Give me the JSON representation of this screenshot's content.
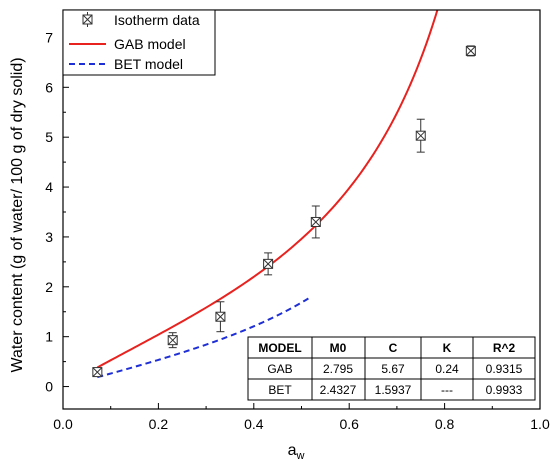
{
  "chart_data": {
    "type": "scatter",
    "xlabel_main": "a",
    "xlabel_sub": "w",
    "ylabel": "Water content (g of water/ 100 g of dry solid)",
    "xlim": [
      0.0,
      1.0
    ],
    "ylim": [
      -0.45,
      7.55
    ],
    "x_ticks": [
      "0.0",
      "0.2",
      "0.4",
      "0.6",
      "0.8",
      "1.0"
    ],
    "y_ticks": [
      "0",
      "1",
      "2",
      "3",
      "4",
      "5",
      "6",
      "7"
    ],
    "series": [
      {
        "name": "Isotherm data",
        "kind": "points",
        "color": "#555555",
        "x": [
          0.072,
          0.23,
          0.33,
          0.43,
          0.53,
          0.75,
          0.855
        ],
        "y": [
          0.29,
          0.93,
          1.4,
          2.46,
          3.3,
          5.03,
          6.73
        ],
        "err": [
          0.05,
          0.15,
          0.3,
          0.22,
          0.32,
          0.33,
          0.1
        ]
      },
      {
        "name": "GAB model",
        "kind": "line",
        "style": "solid",
        "color": "#e8221f"
      },
      {
        "name": "BET model",
        "kind": "line",
        "style": "dashed",
        "color": "#1f2fd6"
      }
    ],
    "legend_position": "top-left",
    "table": {
      "headers": [
        "MODEL",
        "M0",
        "C",
        "K",
        "R^2"
      ],
      "rows": [
        [
          "GAB",
          "2.795",
          "5.67",
          "0.24",
          "0.9315"
        ],
        [
          "BET",
          "2.4327",
          "1.5937",
          "---",
          "0.9933"
        ]
      ]
    }
  }
}
